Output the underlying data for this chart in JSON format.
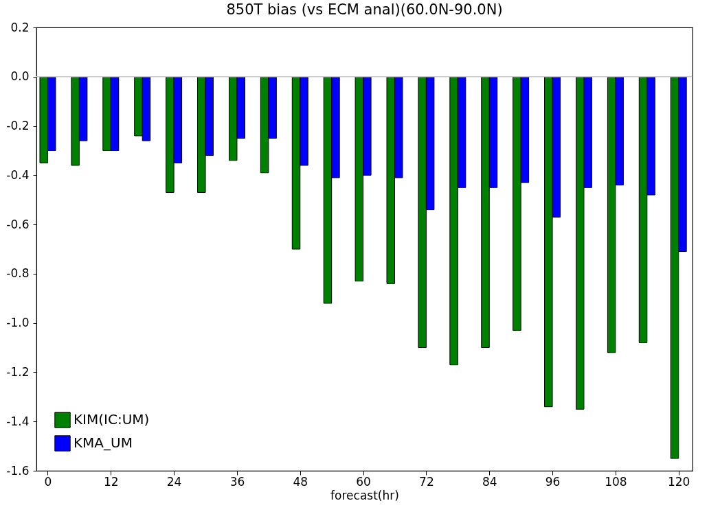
{
  "chart_data": {
    "type": "bar",
    "title": "850T bias (vs ECM anal)(60.0N-90.0N)",
    "xlabel": "forecast(hr)",
    "x": [
      0,
      6,
      12,
      18,
      24,
      30,
      36,
      42,
      48,
      54,
      60,
      66,
      72,
      78,
      84,
      90,
      96,
      102,
      108,
      114,
      120
    ],
    "series": [
      {
        "name": "KIM(IC:UM)",
        "color": "#008000",
        "values": [
          -0.35,
          -0.36,
          -0.3,
          -0.24,
          -0.47,
          -0.47,
          -0.34,
          -0.39,
          -0.7,
          -0.92,
          -0.83,
          -0.84,
          -1.1,
          -1.17,
          -1.1,
          -1.03,
          -1.34,
          -1.35,
          -1.12,
          -1.08,
          -1.55
        ]
      },
      {
        "name": "KMA_UM",
        "color": "#0000ff",
        "values": [
          -0.3,
          -0.26,
          -0.3,
          -0.26,
          -0.35,
          -0.32,
          -0.25,
          -0.25,
          -0.36,
          -0.41,
          -0.4,
          -0.41,
          -0.54,
          -0.45,
          -0.45,
          -0.43,
          -0.57,
          -0.45,
          -0.44,
          -0.48,
          -0.71
        ]
      }
    ],
    "xlim": [
      -1.5,
      122
    ],
    "xticks": [
      0,
      12,
      24,
      36,
      48,
      60,
      72,
      84,
      96,
      108,
      120
    ],
    "ylim": [
      -1.6,
      0.2
    ],
    "yticks": [
      {
        "value": -1.6,
        "label": "-1.6"
      },
      {
        "value": -1.4,
        "label": "-1.4"
      },
      {
        "value": -1.2,
        "label": "-1.2"
      },
      {
        "value": -1.0,
        "label": "-1.0"
      },
      {
        "value": -0.8,
        "label": "-0.8"
      },
      {
        "value": -0.6,
        "label": "-0.6"
      },
      {
        "value": -0.4,
        "label": "-0.4"
      },
      {
        "value": -0.2,
        "label": "-0.2"
      },
      {
        "value": 0,
        "label": "0.0"
      },
      {
        "value": 0.2,
        "label": "0.2"
      }
    ],
    "ref_lines": [
      {
        "axis": "y",
        "value": 0,
        "color": "#cccccc"
      }
    ],
    "grid": false,
    "legend": "bottom left"
  }
}
